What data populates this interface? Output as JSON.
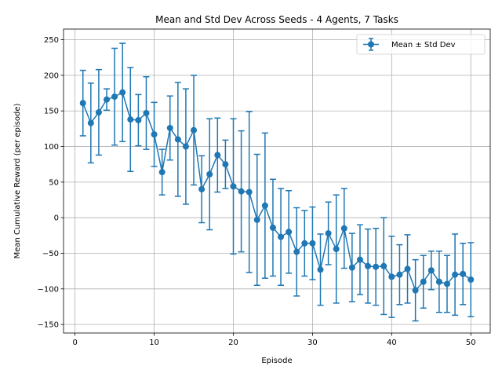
{
  "chart_data": {
    "type": "line",
    "title": "Mean and Std Dev Across Seeds - 4 Agents, 7 Tasks",
    "xlabel": "Episode",
    "ylabel": "Mean Cumulative Reward (per episode)",
    "xlim": [
      -1.45,
      52.45
    ],
    "ylim": [
      -162,
      265
    ],
    "xticks": [
      0,
      10,
      20,
      30,
      40,
      50
    ],
    "yticks": [
      -150,
      -100,
      -50,
      0,
      50,
      100,
      150,
      200,
      250
    ],
    "grid": true,
    "legend_position": "top-right",
    "color": "#1f77b4",
    "series": [
      {
        "name": "Mean ± Std Dev",
        "x": [
          1,
          2,
          3,
          4,
          5,
          6,
          7,
          8,
          9,
          10,
          11,
          12,
          13,
          14,
          15,
          16,
          17,
          18,
          19,
          20,
          21,
          22,
          23,
          24,
          25,
          26,
          27,
          28,
          29,
          30,
          31,
          32,
          33,
          34,
          35,
          36,
          37,
          38,
          39,
          40,
          41,
          42,
          43,
          44,
          45,
          46,
          47,
          48,
          49,
          50
        ],
        "y": [
          161,
          133,
          148,
          166,
          170,
          176,
          138,
          137,
          147,
          117,
          64,
          126,
          110,
          100,
          123,
          40,
          61,
          88,
          75,
          44,
          37,
          36,
          -3,
          17,
          -14,
          -27,
          -20,
          -48,
          -36,
          -36,
          -73,
          -22,
          -44,
          -15,
          -70,
          -59,
          -68,
          -69,
          -68,
          -83,
          -80,
          -72,
          -102,
          -90,
          -74,
          -90,
          -93,
          -80,
          -79,
          -87
        ],
        "yerr": [
          46,
          56,
          60,
          15,
          68,
          69,
          73,
          36,
          51,
          45,
          32,
          45,
          80,
          81,
          77,
          47,
          78,
          52,
          34,
          95,
          85,
          113,
          92,
          102,
          68,
          68,
          58,
          62,
          46,
          51,
          50,
          44,
          76,
          56,
          48,
          49,
          52,
          54,
          68,
          57,
          42,
          48,
          43,
          37,
          27,
          43,
          40,
          57,
          43,
          52
        ]
      }
    ]
  }
}
